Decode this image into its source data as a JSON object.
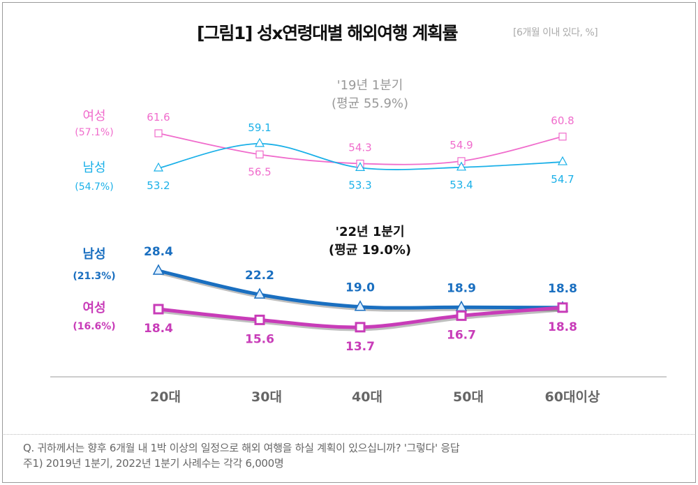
{
  "title": "[그림1] 성x연령대별 해외여행 계획률",
  "unit_note": "[6개월 이내 있다, %]",
  "chart_data": [
    {
      "type": "line",
      "title": "'19년 1분기",
      "subtitle": "(평균 55.9%)",
      "categories": [
        "20대",
        "30대",
        "40대",
        "50대",
        "60대이상"
      ],
      "series": [
        {
          "name": "여성",
          "avg_label": "(57.1%)",
          "color": "#f06ccc",
          "marker": "square",
          "values": [
            61.6,
            56.5,
            54.3,
            54.9,
            60.8
          ]
        },
        {
          "name": "남성",
          "avg_label": "(54.7%)",
          "color": "#1ab0e8",
          "marker": "triangle",
          "values": [
            53.2,
            59.1,
            53.3,
            53.4,
            54.7
          ]
        }
      ]
    },
    {
      "type": "line",
      "title": "'22년 1분기",
      "subtitle": "(평균 19.0%)",
      "categories": [
        "20대",
        "30대",
        "40대",
        "50대",
        "60대이상"
      ],
      "series": [
        {
          "name": "남성",
          "avg_label": "(21.3%)",
          "color": "#1a6fc0",
          "marker": "triangle",
          "values": [
            28.4,
            22.2,
            19.0,
            18.9,
            18.8
          ]
        },
        {
          "name": "여성",
          "avg_label": "(16.6%)",
          "color": "#c83cb8",
          "marker": "square",
          "values": [
            18.4,
            15.6,
            13.7,
            16.7,
            18.8
          ]
        }
      ]
    }
  ],
  "footer": {
    "question": "Q. 귀하께서는 향후 6개월 내 1박 이상의 일정으로 해외 여행을 하실 계획이 있으십니까?  '그렇다' 응답",
    "note": "주1) 2019년 1분기, 2022년 1분기 사례수는 각각 6,000명"
  }
}
